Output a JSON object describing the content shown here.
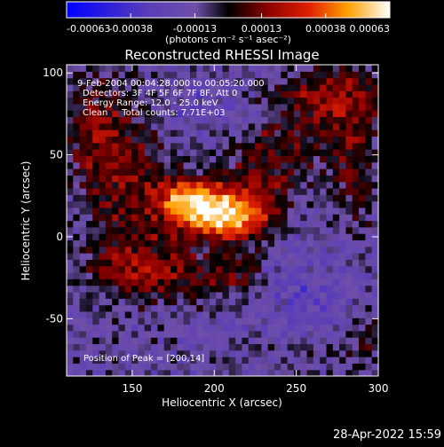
{
  "chart_data": {
    "type": "heatmap",
    "title": "Reconstructed RHESSI Image",
    "xlabel": "Heliocentric X (arcsec)",
    "ylabel": "Heliocentric Y (arcsec)",
    "xlim": [
      110,
      300
    ],
    "ylim": [
      -85,
      105
    ],
    "x_ticks": [
      150,
      200,
      250,
      300
    ],
    "y_ticks": [
      -50,
      0,
      50,
      100
    ],
    "x_tick_labels": [
      "150",
      "200",
      "250",
      "300"
    ],
    "y_tick_labels": [
      "-50",
      "0",
      "50",
      "100"
    ],
    "colorbar": {
      "range": [
        -0.00063,
        0.00063
      ],
      "ticks": [
        -0.00063,
        -0.00038,
        -0.00013,
        0.00013,
        0.00038,
        0.00063
      ],
      "tick_labels": [
        "-0.00063",
        "-0.00038",
        "-0.00013",
        "0.00013",
        "0.00038",
        "0.00063"
      ],
      "unit_label": "(photons cm⁻² s⁻¹ asec⁻²)"
    },
    "info_lines": [
      "9-Feb-2004 00:04:28.000 to 00:05:20.000",
      "Detectors: 3F 4F 5F 6F 7F 8F, Att 0",
      "Energy Range: 12.0 - 25.0 keV",
      "Clean     Total counts: 7.71E+03"
    ],
    "peak_label": "Position of Peak = [200,14]",
    "peak": {
      "x": 200,
      "y": 14
    },
    "sources": [
      {
        "x": 200,
        "y": 16,
        "sx": 14,
        "sy": 11,
        "amp": 0.00063
      },
      {
        "x": 180,
        "y": 22,
        "sx": 12,
        "sy": 10,
        "amp": 0.00042
      },
      {
        "x": 220,
        "y": 10,
        "sx": 14,
        "sy": 10,
        "amp": 0.00032
      },
      {
        "x": 150,
        "y": 25,
        "sx": 20,
        "sy": 35,
        "amp": 0.00022
      },
      {
        "x": 130,
        "y": 65,
        "sx": 14,
        "sy": 24,
        "amp": 0.00024
      },
      {
        "x": 270,
        "y": 85,
        "sx": 22,
        "sy": 14,
        "amp": 0.0003
      },
      {
        "x": 285,
        "y": 45,
        "sx": 10,
        "sy": 30,
        "amp": 0.00022
      },
      {
        "x": 240,
        "y": 55,
        "sx": 22,
        "sy": 14,
        "amp": 0.00018
      },
      {
        "x": 160,
        "y": -20,
        "sx": 26,
        "sy": 12,
        "amp": 0.00024
      },
      {
        "x": 210,
        "y": -25,
        "sx": 14,
        "sy": 10,
        "amp": 0.0002
      },
      {
        "x": 230,
        "y": 30,
        "sx": 16,
        "sy": 12,
        "amp": 0.00018
      },
      {
        "x": 255,
        "y": -70,
        "sx": 20,
        "sy": 10,
        "amp": 0.00012
      },
      {
        "x": 290,
        "y": -60,
        "sx": 10,
        "sy": 14,
        "amp": 0.00015
      },
      {
        "x": 260,
        "y": -40,
        "sx": 25,
        "sy": 25,
        "amp": -0.00012
      },
      {
        "x": 195,
        "y": 80,
        "sx": 18,
        "sy": 10,
        "amp": -0.0001
      }
    ]
  },
  "footer": {
    "timestamp": "28-Apr-2022 15:59"
  }
}
